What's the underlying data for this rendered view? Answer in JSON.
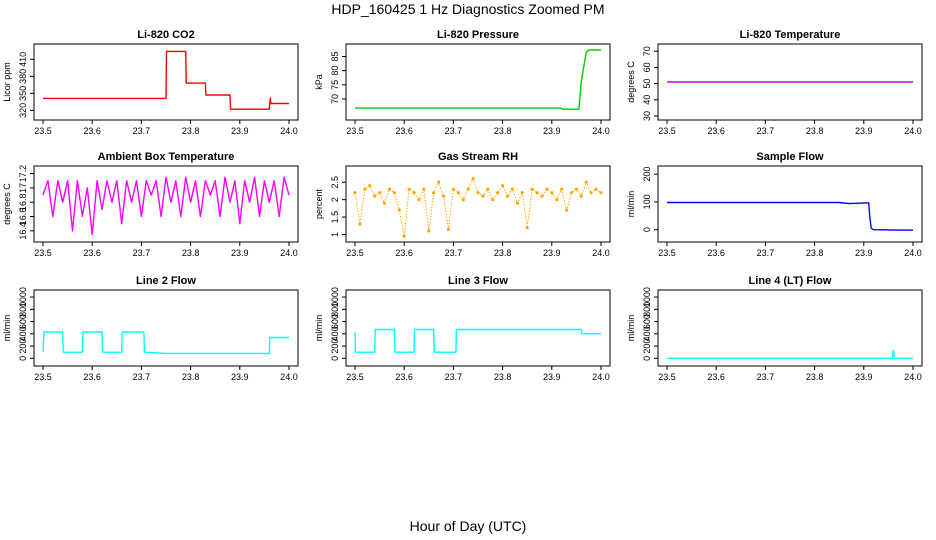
{
  "figure_title": "HDP_160425  1 Hz Diagnostics Zoomed PM",
  "x_label": "Hour of Day (UTC)",
  "chart_data": [
    {
      "type": "line",
      "title": "Li-820 CO2",
      "ylabel": "Licor ppm",
      "color": "#ff0000",
      "xlim": [
        23.5,
        24.0
      ],
      "ylim": [
        310,
        430
      ],
      "xticks": [
        23.5,
        23.6,
        23.7,
        23.8,
        23.9,
        24.0
      ],
      "yticks": [
        320,
        350,
        380,
        410
      ],
      "series": [
        {
          "x": [
            23.5,
            23.75,
            23.751,
            23.79,
            23.791,
            23.83,
            23.831,
            23.88,
            23.881,
            23.96,
            23.962,
            23.963,
            24.0
          ],
          "y": [
            341,
            341,
            424,
            424,
            368,
            368,
            347,
            347,
            322,
            322,
            342,
            332,
            332
          ]
        }
      ]
    },
    {
      "type": "line",
      "title": "Li-820 Pressure",
      "ylabel": "kPa",
      "color": "#00cc00",
      "xlim": [
        23.5,
        24.0
      ],
      "ylim": [
        64,
        88
      ],
      "xticks": [
        23.5,
        23.6,
        23.7,
        23.8,
        23.9,
        24.0
      ],
      "yticks": [
        70,
        75,
        80,
        85
      ],
      "series": [
        {
          "x": [
            23.5,
            23.92,
            23.921,
            23.955,
            23.96,
            23.97,
            23.975,
            24.0
          ],
          "y": [
            66.8,
            66.8,
            66.4,
            66.4,
            76,
            86.5,
            87.3,
            87.3
          ]
        }
      ]
    },
    {
      "type": "line",
      "title": "Li-820 Temperature",
      "ylabel": "degrees C",
      "color": "#cc00cc",
      "xlim": [
        23.5,
        24.0
      ],
      "ylim": [
        30,
        72
      ],
      "xticks": [
        23.5,
        23.6,
        23.7,
        23.8,
        23.9,
        24.0
      ],
      "yticks": [
        30,
        40,
        50,
        60,
        70
      ],
      "series": [
        {
          "x": [
            23.5,
            24.0
          ],
          "y": [
            51.0,
            51.0
          ]
        }
      ]
    },
    {
      "type": "line",
      "title": "Ambient Box Temperature",
      "ylabel": "degrees C",
      "color": "#ff00ff",
      "xlim": [
        23.5,
        24.0
      ],
      "ylim": [
        16.3,
        17.25
      ],
      "xticks": [
        23.5,
        23.6,
        23.7,
        23.8,
        23.9,
        24.0
      ],
      "yticks": [
        16.4,
        16.6,
        16.8,
        17.0,
        17.2
      ],
      "series": [
        {
          "x": [
            23.5,
            23.51,
            23.52,
            23.53,
            23.54,
            23.55,
            23.56,
            23.57,
            23.58,
            23.59,
            23.6,
            23.61,
            23.62,
            23.63,
            23.64,
            23.65,
            23.66,
            23.67,
            23.68,
            23.69,
            23.7,
            23.71,
            23.72,
            23.73,
            23.74,
            23.75,
            23.76,
            23.77,
            23.78,
            23.79,
            23.8,
            23.81,
            23.82,
            23.83,
            23.84,
            23.85,
            23.86,
            23.87,
            23.88,
            23.89,
            23.9,
            23.91,
            23.92,
            23.93,
            23.94,
            23.95,
            23.96,
            23.97,
            23.98,
            23.99,
            24.0
          ],
          "y": [
            16.9,
            17.1,
            16.6,
            17.1,
            16.8,
            17.1,
            16.4,
            17.1,
            16.6,
            17.0,
            16.35,
            17.1,
            16.7,
            17.1,
            16.8,
            17.1,
            16.5,
            17.1,
            16.8,
            17.1,
            16.6,
            17.1,
            16.9,
            17.1,
            16.6,
            17.15,
            16.8,
            17.1,
            16.6,
            17.15,
            16.8,
            17.1,
            16.6,
            17.1,
            16.9,
            17.1,
            16.6,
            17.15,
            16.8,
            17.1,
            16.5,
            17.1,
            16.8,
            17.15,
            16.6,
            17.1,
            16.8,
            17.1,
            16.6,
            17.15,
            16.9
          ]
        }
      ]
    },
    {
      "type": "scatter",
      "title": "Gas Stream RH",
      "ylabel": "percent",
      "color": "#ffa500",
      "xlim": [
        23.5,
        24.0
      ],
      "ylim": [
        0.9,
        2.85
      ],
      "xticks": [
        23.5,
        23.6,
        23.7,
        23.8,
        23.9,
        24.0
      ],
      "yticks": [
        1.0,
        1.5,
        2.0,
        2.5
      ],
      "series": [
        {
          "x": [
            23.5,
            23.51,
            23.52,
            23.53,
            23.54,
            23.55,
            23.56,
            23.57,
            23.58,
            23.59,
            23.6,
            23.61,
            23.62,
            23.63,
            23.64,
            23.65,
            23.66,
            23.67,
            23.68,
            23.69,
            23.7,
            23.71,
            23.72,
            23.73,
            23.74,
            23.75,
            23.76,
            23.77,
            23.78,
            23.79,
            23.8,
            23.81,
            23.82,
            23.83,
            23.84,
            23.85,
            23.86,
            23.87,
            23.88,
            23.89,
            23.9,
            23.91,
            23.92,
            23.93,
            23.94,
            23.95,
            23.96,
            23.97,
            23.98,
            23.99,
            24.0
          ],
          "y": [
            2.2,
            1.3,
            2.3,
            2.4,
            2.1,
            2.2,
            1.9,
            2.3,
            2.2,
            1.7,
            0.95,
            2.3,
            2.2,
            2.0,
            2.3,
            1.1,
            2.2,
            2.5,
            2.1,
            1.15,
            2.3,
            2.2,
            2.0,
            2.3,
            2.6,
            2.2,
            2.1,
            2.3,
            2.0,
            2.2,
            2.4,
            2.1,
            2.3,
            1.9,
            2.2,
            1.2,
            2.3,
            2.2,
            2.1,
            2.3,
            2.2,
            2.0,
            2.3,
            1.7,
            2.2,
            2.3,
            2.1,
            2.5,
            2.2,
            2.3,
            2.2
          ]
        }
      ]
    },
    {
      "type": "line",
      "title": "Sample Flow",
      "ylabel": "ml/min",
      "color": "#0000ff",
      "xlim": [
        23.5,
        24.0
      ],
      "ylim": [
        -30,
        215
      ],
      "xticks": [
        23.5,
        23.6,
        23.7,
        23.8,
        23.9,
        24.0
      ],
      "yticks": [
        0,
        100,
        200
      ],
      "series": [
        {
          "x": [
            23.5,
            23.85,
            23.87,
            23.91,
            23.912,
            23.915,
            23.92,
            24.0
          ],
          "y": [
            98,
            98,
            94,
            97,
            50,
            5,
            0,
            -2
          ]
        }
      ]
    },
    {
      "type": "line",
      "title": "Line 2 Flow",
      "ylabel": "ml/min",
      "color": "#00ffff",
      "xlim": [
        23.5,
        24.0
      ],
      "ylim": [
        -60,
        1050
      ],
      "xticks": [
        23.5,
        23.6,
        23.7,
        23.8,
        23.9,
        24.0
      ],
      "yticks": [
        0,
        200,
        400,
        600,
        800,
        1000
      ],
      "series": [
        {
          "x": [
            23.5,
            23.502,
            23.54,
            23.541,
            23.58,
            23.581,
            23.62,
            23.621,
            23.66,
            23.661,
            23.705,
            23.706,
            23.75,
            23.96,
            23.961,
            24.0
          ],
          "y": [
            100,
            430,
            430,
            100,
            100,
            430,
            430,
            100,
            100,
            430,
            430,
            100,
            80,
            80,
            340,
            340
          ]
        }
      ]
    },
    {
      "type": "line",
      "title": "Line 3 Flow",
      "ylabel": "ml/min",
      "color": "#00ffff",
      "xlim": [
        23.5,
        24.0
      ],
      "ylim": [
        -60,
        1050
      ],
      "xticks": [
        23.5,
        23.6,
        23.7,
        23.8,
        23.9,
        24.0
      ],
      "yticks": [
        0,
        200,
        400,
        600,
        800,
        1000
      ],
      "series": [
        {
          "x": [
            23.5,
            23.501,
            23.502,
            23.54,
            23.541,
            23.58,
            23.581,
            23.62,
            23.621,
            23.66,
            23.661,
            23.705,
            23.706,
            23.96,
            23.961,
            24.0
          ],
          "y": [
            420,
            100,
            100,
            100,
            470,
            470,
            100,
            100,
            470,
            470,
            100,
            100,
            470,
            470,
            400,
            400
          ]
        }
      ]
    },
    {
      "type": "line",
      "title": "Line 4 (LT) Flow",
      "ylabel": "ml/min",
      "color": "#00ffff",
      "xlim": [
        23.5,
        24.0
      ],
      "ylim": [
        -60,
        1050
      ],
      "xticks": [
        23.5,
        23.6,
        23.7,
        23.8,
        23.9,
        24.0
      ],
      "yticks": [
        0,
        200,
        400,
        600,
        800,
        1000
      ],
      "series": [
        {
          "x": [
            23.5,
            23.958,
            23.96,
            23.962,
            23.964,
            24.0
          ],
          "y": [
            0,
            0,
            130,
            0,
            0,
            0
          ]
        }
      ]
    }
  ]
}
